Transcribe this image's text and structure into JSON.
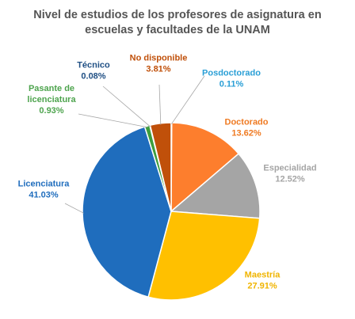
{
  "chart_data": {
    "type": "pie",
    "title": [
      "Nivel de estudios de los profesores de asignatura en",
      "escuelas y facultades de la UNAM"
    ],
    "slices": [
      {
        "name": "Posdoctorado",
        "value": 0.11,
        "value_label": "0.11%",
        "color": "#8ab4d8",
        "label_color": "#2a9fd6"
      },
      {
        "name": "Doctorado",
        "value": 13.62,
        "value_label": "13.62%",
        "color": "#fd7e2d",
        "label_color": "#ef7a22"
      },
      {
        "name": "Especialidad",
        "value": 12.52,
        "value_label": "12.52%",
        "color": "#a5a5a5",
        "label_color": "#a5a5a5"
      },
      {
        "name": "Maestría",
        "value": 27.91,
        "value_label": "27.91%",
        "color": "#ffc000",
        "label_color": "#f0b400"
      },
      {
        "name": "Licenciatura",
        "value": 41.03,
        "value_label": "41.03%",
        "color": "#1f6dbd",
        "label_color": "#1f6dbd"
      },
      {
        "name": "Pasante de licenciatura",
        "name_lines": [
          "Pasante de",
          "licenciatura"
        ],
        "value": 0.93,
        "value_label": "0.93%",
        "color": "#3d9e3d",
        "label_color": "#4ea44e"
      },
      {
        "name": "Técnico",
        "value": 0.08,
        "value_label": "0.08%",
        "color": "#245a8c",
        "label_color": "#1f4f84"
      },
      {
        "name": "No disponible",
        "value": 3.81,
        "value_label": "3.81%",
        "color": "#c0500a",
        "label_color": "#c0500a"
      }
    ]
  }
}
